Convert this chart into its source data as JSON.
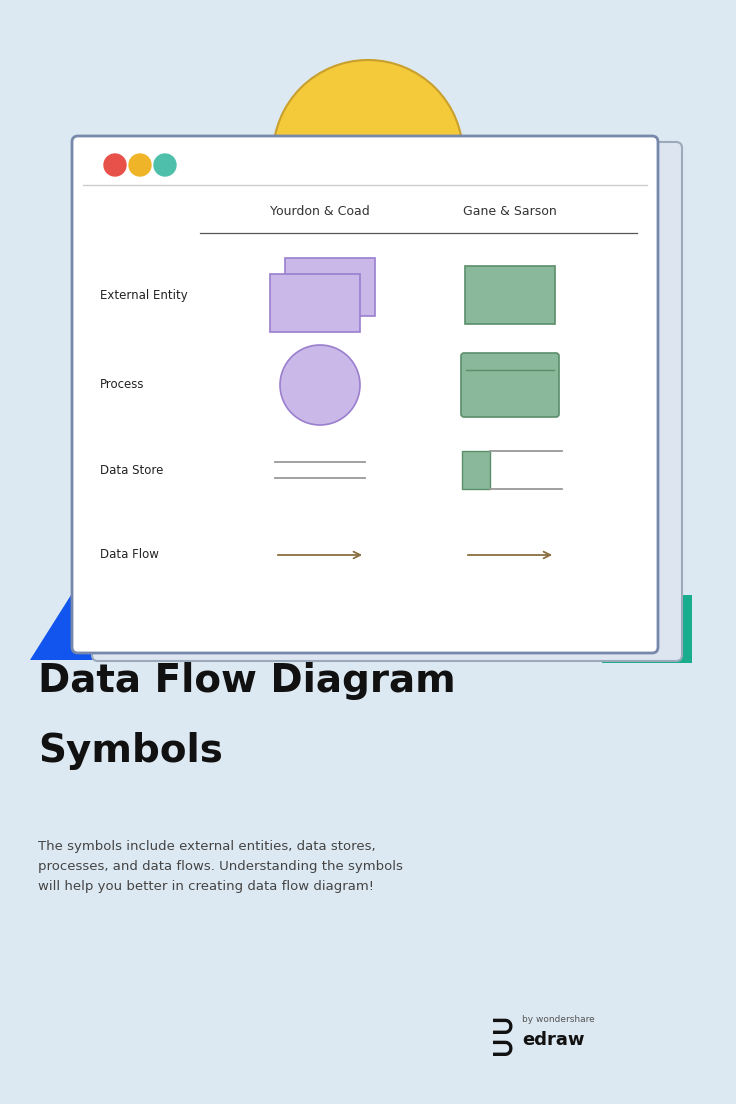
{
  "bg_color": "#dde9f2",
  "title_line1": "Data Flow Diagram",
  "title_line2": "Symbols",
  "subtitle": "The symbols include external entities, data stores,\nprocesses, and data flows. Understanding the symbols\nwill help you better in creating data flow diagram!",
  "title_color": "#111111",
  "subtitle_color": "#444444",
  "dot_colors": [
    "#e8514a",
    "#f0b429",
    "#4dbfaa"
  ],
  "col1_header": "Yourdon & Coad",
  "col2_header": "Gane & Sarson",
  "rows": [
    "External Entity",
    "Process",
    "Data Store",
    "Data Flow"
  ],
  "purple_fill": "#c9b8e8",
  "purple_stroke": "#9b7fce",
  "green_fill": "#8ab89a",
  "green_stroke": "#5a8f6a",
  "blue_triangle": "#1155ee",
  "teal_rect": "#1aad8d",
  "yellow_color": "#f5ca3a",
  "yellow_stroke": "#c8a030",
  "window_bg": "#ffffff",
  "window_border": "#7788aa",
  "shadow_bg": "#dde5f0",
  "shadow_border": "#9aaabb",
  "arrow_color": "#8a7040",
  "line_color": "#999999",
  "header_line_color": "#555555"
}
